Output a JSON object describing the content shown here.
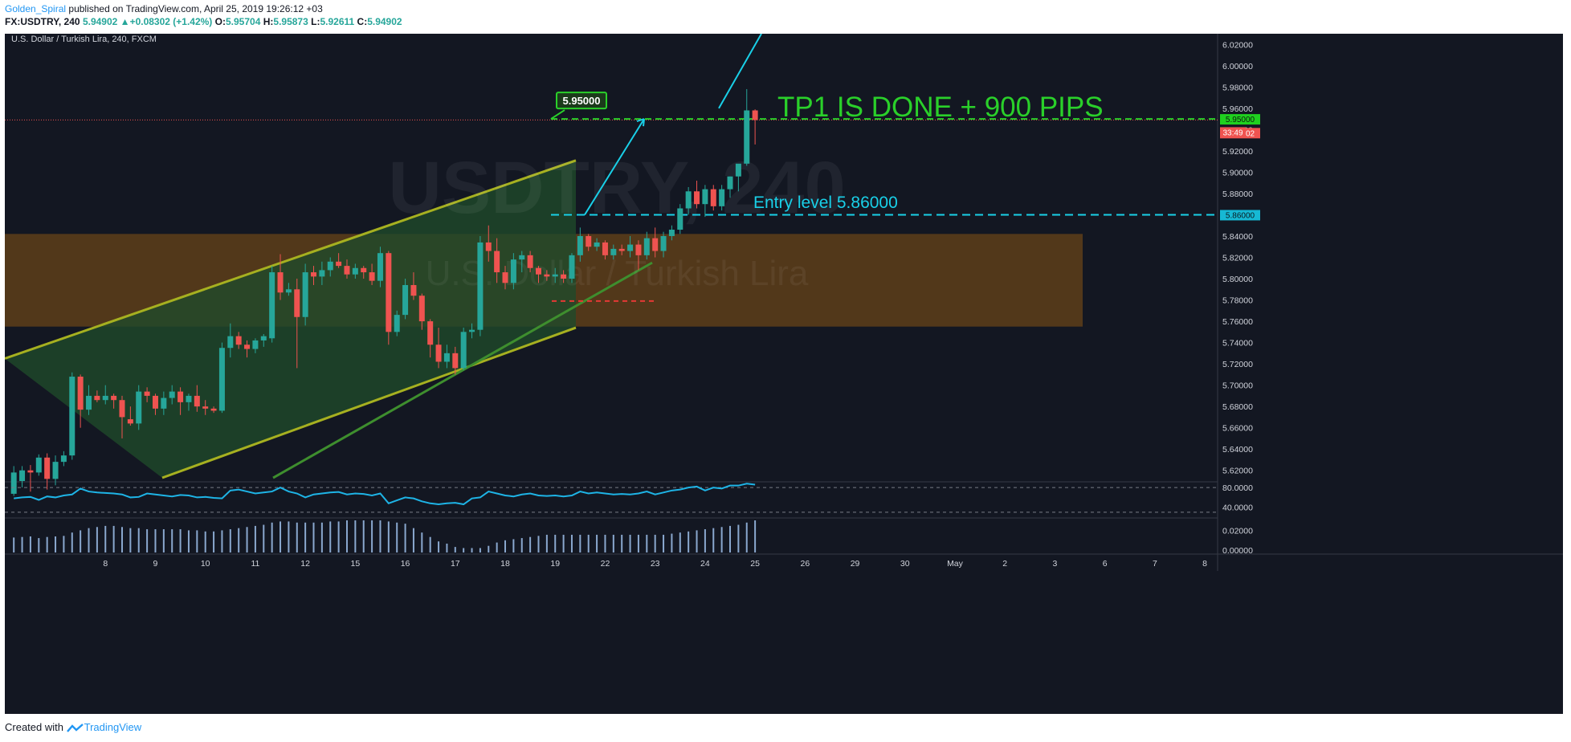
{
  "header": {
    "user": "Golden_Spiral",
    "published": "published on TradingView.com, April 25, 2019 19:26:12 +03",
    "symbol": "FX:USDTRY, 240",
    "last": "5.94902",
    "arrow": "▲",
    "change": "+0.08302 (+1.42%)",
    "o_label": "O:",
    "o": "5.95704",
    "h_label": "H:",
    "h": "5.95873",
    "l_label": "L:",
    "l": "5.92611",
    "c_label": "C:",
    "c": "5.94902"
  },
  "footer": {
    "created_with": "Created with",
    "brand": "TradingView"
  },
  "colors": {
    "background": "#131722",
    "up": "#26a69a",
    "down": "#ef5350",
    "channel": "#a6b020",
    "channel_fill": "#1f4a2a",
    "zone": "#6b4518",
    "tp_line": "#2ad02a",
    "entry_line": "#19d0e8",
    "rsi": "#1eb4e6",
    "volume": "#8aa8cf"
  },
  "chart_data": {
    "type": "candlestick",
    "title": "U.S. Dollar / Turkish Lira, 240, FXCM",
    "watermark_symbol": "USDTRY, 240",
    "watermark_name": "U.S. Dollar / Turkish Lira",
    "ylim": [
      5.61,
      6.03
    ],
    "y_ticks": [
      "6.02000",
      "6.00000",
      "5.98000",
      "5.96000",
      "5.94000",
      "5.92000",
      "5.90000",
      "5.88000",
      "5.86000",
      "5.84000",
      "5.82000",
      "5.80000",
      "5.78000",
      "5.76000",
      "5.74000",
      "5.72000",
      "5.70000",
      "5.68000",
      "5.66000",
      "5.64000",
      "5.62000"
    ],
    "x_labels": [
      {
        "label": "8",
        "i": 11.5
      },
      {
        "label": "9",
        "i": 17.5
      },
      {
        "label": "10",
        "i": 23.5
      },
      {
        "label": "11",
        "i": 29.5
      },
      {
        "label": "12",
        "i": 35.5
      },
      {
        "label": "15",
        "i": 41.5
      },
      {
        "label": "16",
        "i": 47.5
      },
      {
        "label": "17",
        "i": 53.5
      },
      {
        "label": "18",
        "i": 59.5
      },
      {
        "label": "19",
        "i": 65.5
      },
      {
        "label": "22",
        "i": 71.5
      },
      {
        "label": "23",
        "i": 77.5
      },
      {
        "label": "24",
        "i": 83.5
      },
      {
        "label": "25",
        "i": 89.5
      },
      {
        "label": "26",
        "i": 95.5
      },
      {
        "label": "29",
        "i": 101.5
      },
      {
        "label": "30",
        "i": 107.5
      },
      {
        "label": "May",
        "i": 113.5
      },
      {
        "label": "2",
        "i": 119.5
      },
      {
        "label": "3",
        "i": 125.5
      },
      {
        "label": "6",
        "i": 131.5
      },
      {
        "label": "7",
        "i": 137.5
      },
      {
        "label": "8",
        "i": 143.5
      }
    ],
    "candles": [
      [
        5.598,
        5.624,
        5.596,
        5.618
      ],
      [
        5.61,
        5.624,
        5.604,
        5.62
      ],
      [
        5.62,
        5.625,
        5.6,
        5.618
      ],
      [
        5.618,
        5.635,
        5.615,
        5.632
      ],
      [
        5.632,
        5.636,
        5.602,
        5.612
      ],
      [
        5.612,
        5.634,
        5.606,
        5.628
      ],
      [
        5.628,
        5.638,
        5.624,
        5.634
      ],
      [
        5.634,
        5.712,
        5.63,
        5.708
      ],
      [
        5.708,
        5.71,
        5.66,
        5.677
      ],
      [
        5.677,
        5.7,
        5.672,
        5.69
      ],
      [
        5.69,
        5.695,
        5.684,
        5.686
      ],
      [
        5.686,
        5.7,
        5.682,
        5.69
      ],
      [
        5.69,
        5.692,
        5.678,
        5.686
      ],
      [
        5.686,
        5.69,
        5.65,
        5.67
      ],
      [
        5.668,
        5.68,
        5.662,
        5.664
      ],
      [
        5.664,
        5.7,
        5.658,
        5.694
      ],
      [
        5.694,
        5.698,
        5.684,
        5.69
      ],
      [
        5.69,
        5.692,
        5.672,
        5.678
      ],
      [
        5.678,
        5.694,
        5.672,
        5.688
      ],
      [
        5.688,
        5.7,
        5.682,
        5.694
      ],
      [
        5.694,
        5.698,
        5.672,
        5.684
      ],
      [
        5.684,
        5.692,
        5.676,
        5.69
      ],
      [
        5.69,
        5.7,
        5.675,
        5.68
      ],
      [
        5.68,
        5.686,
        5.672,
        5.678
      ],
      [
        5.678,
        5.68,
        5.674,
        5.676
      ],
      [
        5.676,
        5.74,
        5.674,
        5.735
      ],
      [
        5.735,
        5.758,
        5.726,
        5.746
      ],
      [
        5.746,
        5.75,
        5.734,
        5.738
      ],
      [
        5.738,
        5.742,
        5.726,
        5.734
      ],
      [
        5.734,
        5.744,
        5.73,
        5.742
      ],
      [
        5.742,
        5.748,
        5.736,
        5.746
      ],
      [
        5.744,
        5.812,
        5.74,
        5.806
      ],
      [
        5.806,
        5.823,
        5.78,
        5.787
      ],
      [
        5.787,
        5.796,
        5.784,
        5.79
      ],
      [
        5.79,
        5.8,
        5.716,
        5.764
      ],
      [
        5.764,
        5.814,
        5.756,
        5.806
      ],
      [
        5.806,
        5.812,
        5.794,
        5.802
      ],
      [
        5.802,
        5.816,
        5.794,
        5.808
      ],
      [
        5.808,
        5.82,
        5.802,
        5.816
      ],
      [
        5.816,
        5.824,
        5.81,
        5.812
      ],
      [
        5.812,
        5.818,
        5.8,
        5.804
      ],
      [
        5.804,
        5.814,
        5.8,
        5.81
      ],
      [
        5.81,
        5.812,
        5.8,
        5.806
      ],
      [
        5.806,
        5.814,
        5.794,
        5.798
      ],
      [
        5.798,
        5.83,
        5.792,
        5.824
      ],
      [
        5.824,
        5.826,
        5.738,
        5.75
      ],
      [
        5.75,
        5.77,
        5.746,
        5.766
      ],
      [
        5.766,
        5.8,
        5.762,
        5.794
      ],
      [
        5.794,
        5.806,
        5.78,
        5.784
      ],
      [
        5.784,
        5.786,
        5.752,
        5.76
      ],
      [
        5.76,
        5.762,
        5.726,
        5.738
      ],
      [
        5.738,
        5.754,
        5.716,
        5.722
      ],
      [
        5.722,
        5.738,
        5.716,
        5.73
      ],
      [
        5.73,
        5.736,
        5.71,
        5.716
      ],
      [
        5.716,
        5.754,
        5.714,
        5.75
      ],
      [
        5.75,
        5.758,
        5.744,
        5.752
      ],
      [
        5.752,
        5.84,
        5.746,
        5.834
      ],
      [
        5.834,
        5.85,
        5.816,
        5.826
      ],
      [
        5.826,
        5.838,
        5.796,
        5.806
      ],
      [
        5.806,
        5.812,
        5.79,
        5.796
      ],
      [
        5.796,
        5.824,
        5.79,
        5.818
      ],
      [
        5.818,
        5.826,
        5.806,
        5.822
      ],
      [
        5.822,
        5.826,
        5.806,
        5.81
      ],
      [
        5.81,
        5.812,
        5.796,
        5.804
      ],
      [
        5.804,
        5.808,
        5.798,
        5.802
      ],
      [
        5.802,
        5.81,
        5.796,
        5.804
      ],
      [
        5.804,
        5.808,
        5.796,
        5.8
      ],
      [
        5.8,
        5.824,
        5.796,
        5.822
      ],
      [
        5.822,
        5.848,
        5.816,
        5.84
      ],
      [
        5.84,
        5.842,
        5.826,
        5.83
      ],
      [
        5.83,
        5.838,
        5.826,
        5.834
      ],
      [
        5.834,
        5.836,
        5.818,
        5.822
      ],
      [
        5.822,
        5.832,
        5.818,
        5.828
      ],
      [
        5.828,
        5.832,
        5.822,
        5.826
      ],
      [
        5.826,
        5.84,
        5.82,
        5.832
      ],
      [
        5.832,
        5.836,
        5.808,
        5.822
      ],
      [
        5.822,
        5.844,
        5.818,
        5.838
      ],
      [
        5.838,
        5.848,
        5.82,
        5.826
      ],
      [
        5.826,
        5.844,
        5.82,
        5.84
      ],
      [
        5.84,
        5.85,
        5.836,
        5.846
      ],
      [
        5.846,
        5.87,
        5.842,
        5.866
      ],
      [
        5.866,
        5.886,
        5.86,
        5.882
      ],
      [
        5.882,
        5.892,
        5.866,
        5.87
      ],
      [
        5.87,
        5.888,
        5.858,
        5.884
      ],
      [
        5.884,
        5.888,
        5.864,
        5.868
      ],
      [
        5.868,
        5.888,
        5.864,
        5.884
      ],
      [
        5.884,
        5.896,
        5.876,
        5.896
      ],
      [
        5.896,
        5.904,
        5.882,
        5.908
      ],
      [
        5.908,
        5.978,
        5.906,
        5.958
      ],
      [
        5.958,
        5.959,
        5.926,
        5.949
      ]
    ],
    "rsi": {
      "levels": [
        80,
        30
      ],
      "tick_labels": [
        "80.0000",
        "40.0000"
      ],
      "values": [
        58,
        60,
        61,
        55,
        62,
        60,
        64,
        66,
        78,
        72,
        70,
        69,
        68,
        66,
        60,
        61,
        68,
        66,
        64,
        62,
        65,
        64,
        60,
        61,
        59,
        58,
        74,
        76,
        72,
        68,
        70,
        72,
        80,
        72,
        68,
        60,
        66,
        68,
        70,
        71,
        66,
        68,
        67,
        64,
        68,
        48,
        54,
        60,
        58,
        52,
        48,
        46,
        48,
        49,
        46,
        58,
        60,
        72,
        68,
        64,
        62,
        66,
        68,
        64,
        63,
        64,
        62,
        64,
        72,
        68,
        70,
        68,
        66,
        67,
        66,
        68,
        72,
        66,
        70,
        74,
        76,
        80,
        82,
        74,
        80,
        78,
        84,
        84,
        88,
        86
      ]
    },
    "volume": {
      "tick_labels": [
        "0.02000",
        "0.00000"
      ],
      "max": 0.029,
      "values": [
        0.0135,
        0.014,
        0.0145,
        0.013,
        0.014,
        0.0145,
        0.015,
        0.018,
        0.02,
        0.022,
        0.023,
        0.024,
        0.024,
        0.023,
        0.022,
        0.022,
        0.021,
        0.021,
        0.021,
        0.021,
        0.021,
        0.02,
        0.02,
        0.019,
        0.019,
        0.02,
        0.021,
        0.022,
        0.023,
        0.024,
        0.025,
        0.027,
        0.028,
        0.028,
        0.027,
        0.027,
        0.027,
        0.027,
        0.028,
        0.028,
        0.029,
        0.029,
        0.029,
        0.029,
        0.029,
        0.028,
        0.027,
        0.026,
        0.022,
        0.018,
        0.014,
        0.01,
        0.008,
        0.005,
        0.004,
        0.004,
        0.004,
        0.006,
        0.009,
        0.011,
        0.012,
        0.013,
        0.014,
        0.015,
        0.016,
        0.016,
        0.016,
        0.016,
        0.016,
        0.016,
        0.016,
        0.016,
        0.016,
        0.016,
        0.016,
        0.016,
        0.016,
        0.016,
        0.016,
        0.017,
        0.018,
        0.019,
        0.02,
        0.021,
        0.022,
        0.023,
        0.024,
        0.025,
        0.027,
        0.029
      ]
    },
    "annotations": {
      "tp_text": "TP1 IS DONE  + 900 PIPS",
      "entry_text": "Entry level 5.86000",
      "target_box": "5.95000",
      "tp_price": 5.95,
      "entry_price": 5.86,
      "axis_tp": "5.95000",
      "axis_last": "5.94902",
      "axis_timer": "33:49",
      "axis_entry": "5.86000",
      "current_price": 5.94902,
      "zone": [
        5.755,
        5.842
      ]
    }
  }
}
